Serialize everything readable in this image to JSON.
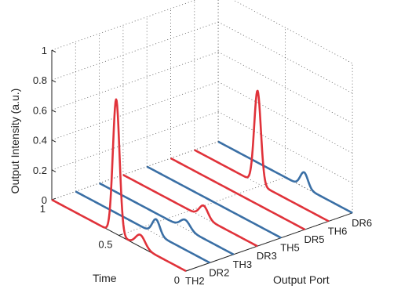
{
  "chart_data": {
    "type": "line",
    "view": "3d-waterfall",
    "title": "",
    "xlabel": "Output Port",
    "ylabel": "Time",
    "zlabel": "Output Intensity (a.u.)",
    "categories": [
      "TH2",
      "DR2",
      "TH3",
      "DR3",
      "TH5",
      "DR5",
      "TH6",
      "DR6"
    ],
    "time_ticks": [
      "0",
      "0.5",
      "1"
    ],
    "time_range": [
      0,
      1
    ],
    "z_ticks": [
      "0",
      "0.2",
      "0.4",
      "0.6",
      "0.8",
      "1"
    ],
    "zlim": [
      0,
      1
    ],
    "grid": true,
    "series": [
      {
        "category": "TH2",
        "color": "#e0323a",
        "peaks": [
          {
            "t": 0.52,
            "height": 0.9,
            "width": 0.035
          },
          {
            "t": 0.34,
            "height": 0.08,
            "width": 0.05
          }
        ]
      },
      {
        "category": "DR2",
        "color": "#3a6fa5",
        "peaks": [
          {
            "t": 0.4,
            "height": 0.1,
            "width": 0.04
          }
        ]
      },
      {
        "category": "TH3",
        "color": "#3a6fa5",
        "peaks": [
          {
            "t": 0.36,
            "height": 0.06,
            "width": 0.05
          }
        ]
      },
      {
        "category": "DR3",
        "color": "#e0323a",
        "peaks": [
          {
            "t": 0.4,
            "height": 0.08,
            "width": 0.045
          }
        ]
      },
      {
        "category": "TH5",
        "color": "#3a6fa5",
        "peaks": []
      },
      {
        "category": "DR5",
        "color": "#e0323a",
        "peaks": []
      },
      {
        "category": "TH6",
        "color": "#e0323a",
        "peaks": [
          {
            "t": 0.53,
            "height": 0.62,
            "width": 0.035
          }
        ]
      },
      {
        "category": "DR6",
        "color": "#3a6fa5",
        "peaks": [
          {
            "t": 0.36,
            "height": 0.1,
            "width": 0.04
          }
        ]
      }
    ]
  }
}
